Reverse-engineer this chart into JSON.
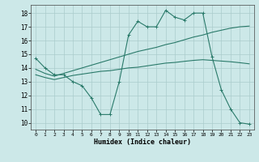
{
  "xlabel": "Humidex (Indice chaleur)",
  "bg_color": "#cce8e8",
  "line_color": "#2a7a6a",
  "grid_color": "#aacccc",
  "xlim": [
    -0.5,
    23.5
  ],
  "ylim": [
    9.5,
    18.6
  ],
  "xticks": [
    0,
    1,
    2,
    3,
    4,
    5,
    6,
    7,
    8,
    9,
    10,
    11,
    12,
    13,
    14,
    15,
    16,
    17,
    18,
    19,
    20,
    21,
    22,
    23
  ],
  "yticks": [
    10,
    11,
    12,
    13,
    14,
    15,
    16,
    17,
    18
  ],
  "line1_x": [
    0,
    1,
    2,
    3,
    4,
    5,
    6,
    7,
    8,
    9,
    10,
    11,
    12,
    13,
    14,
    15,
    16,
    17,
    18,
    19,
    20,
    21,
    22,
    23
  ],
  "line1_y": [
    14.7,
    14.0,
    13.5,
    13.5,
    13.0,
    12.7,
    11.8,
    10.6,
    10.6,
    13.0,
    16.4,
    17.4,
    17.0,
    17.0,
    18.2,
    17.7,
    17.5,
    18.0,
    18.0,
    14.8,
    12.4,
    11.0,
    10.0,
    9.9
  ],
  "line2_x": [
    0,
    1,
    2,
    3,
    4,
    5,
    6,
    7,
    8,
    9,
    10,
    11,
    12,
    13,
    14,
    15,
    16,
    17,
    18,
    19,
    20,
    21,
    22,
    23
  ],
  "line2_y": [
    13.9,
    13.6,
    13.4,
    13.6,
    13.8,
    14.0,
    14.2,
    14.4,
    14.6,
    14.8,
    15.0,
    15.2,
    15.35,
    15.5,
    15.7,
    15.85,
    16.05,
    16.25,
    16.4,
    16.6,
    16.75,
    16.9,
    17.0,
    17.05
  ],
  "line3_x": [
    0,
    1,
    2,
    3,
    4,
    5,
    6,
    7,
    8,
    9,
    10,
    11,
    12,
    13,
    14,
    15,
    16,
    17,
    18,
    19,
    20,
    21,
    22,
    23
  ],
  "line3_y": [
    13.5,
    13.3,
    13.15,
    13.3,
    13.45,
    13.55,
    13.65,
    13.75,
    13.8,
    13.9,
    14.0,
    14.05,
    14.15,
    14.25,
    14.35,
    14.4,
    14.48,
    14.55,
    14.6,
    14.55,
    14.5,
    14.45,
    14.38,
    14.3
  ]
}
